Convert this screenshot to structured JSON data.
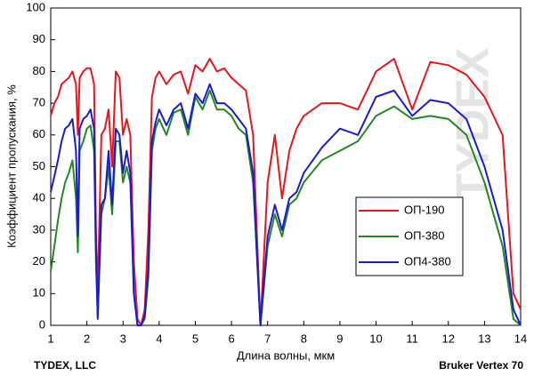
{
  "chart_data": {
    "type": "line",
    "x_label": "Длина волны, мкм",
    "y_label": "Коэффициент пропускания, %",
    "footer_left": "TYDEX, LLC",
    "footer_right": "Bruker Vertex 70",
    "watermark": "TYDEX",
    "legend": "right",
    "x": [
      1.0,
      1.1,
      1.2,
      1.3,
      1.4,
      1.5,
      1.6,
      1.7,
      1.75,
      1.8,
      1.9,
      2.0,
      2.1,
      2.2,
      2.25,
      2.3,
      2.4,
      2.5,
      2.6,
      2.7,
      2.8,
      2.9,
      3.0,
      3.1,
      3.2,
      3.3,
      3.4,
      3.5,
      3.6,
      3.7,
      3.8,
      3.9,
      4.0,
      4.2,
      4.4,
      4.6,
      4.8,
      5.0,
      5.2,
      5.4,
      5.6,
      5.8,
      6.0,
      6.2,
      6.4,
      6.6,
      6.8,
      7.0,
      7.2,
      7.4,
      7.6,
      7.8,
      8.0,
      8.5,
      9.0,
      9.5,
      10.0,
      10.5,
      11.0,
      11.5,
      12.0,
      12.5,
      13.0,
      13.5,
      13.8,
      14.0
    ],
    "series": [
      {
        "name": "ОП-190",
        "color": "#e8161b",
        "values": [
          66,
          70,
          72,
          76,
          77,
          78,
          80,
          76,
          60,
          78,
          80,
          81,
          81,
          76,
          30,
          10,
          60,
          62,
          68,
          50,
          80,
          78,
          60,
          65,
          60,
          20,
          2,
          0,
          5,
          30,
          72,
          78,
          80,
          76,
          79,
          80,
          73,
          82,
          80,
          84,
          80,
          81,
          78,
          76,
          74,
          60,
          0,
          45,
          60,
          40,
          55,
          62,
          66,
          70,
          70,
          68,
          80,
          84,
          68,
          83,
          82,
          79,
          72,
          60,
          10,
          5
        ]
      },
      {
        "name": "ОП-380",
        "color": "#1f8a1f",
        "values": [
          17,
          25,
          33,
          40,
          45,
          48,
          52,
          40,
          23,
          55,
          58,
          62,
          63,
          55,
          20,
          3,
          35,
          40,
          50,
          35,
          58,
          58,
          45,
          50,
          45,
          10,
          0,
          0,
          2,
          15,
          55,
          62,
          65,
          60,
          67,
          68,
          60,
          72,
          68,
          74,
          68,
          68,
          66,
          62,
          60,
          45,
          0,
          25,
          35,
          28,
          38,
          40,
          45,
          52,
          55,
          58,
          66,
          69,
          65,
          66,
          65,
          60,
          45,
          25,
          2,
          0
        ]
      },
      {
        "name": "ОП4-380",
        "color": "#1a1ad6",
        "values": [
          42,
          47,
          52,
          58,
          62,
          63,
          65,
          55,
          28,
          62,
          65,
          66,
          68,
          62,
          25,
          2,
          38,
          40,
          55,
          38,
          62,
          60,
          48,
          55,
          48,
          10,
          0,
          0,
          3,
          18,
          58,
          64,
          68,
          63,
          68,
          70,
          62,
          73,
          70,
          76,
          70,
          70,
          68,
          65,
          62,
          48,
          0,
          28,
          38,
          30,
          40,
          42,
          48,
          56,
          62,
          60,
          72,
          74,
          66,
          71,
          70,
          65,
          50,
          30,
          5,
          0
        ]
      }
    ],
    "xlim": [
      1,
      14
    ],
    "xticks": [
      1,
      2,
      3,
      4,
      5,
      6,
      7,
      8,
      9,
      10,
      11,
      12,
      13,
      14
    ],
    "ylim": [
      0,
      100
    ],
    "yticks": [
      0,
      10,
      20,
      30,
      40,
      50,
      60,
      70,
      80,
      90,
      100
    ],
    "grid": false
  }
}
